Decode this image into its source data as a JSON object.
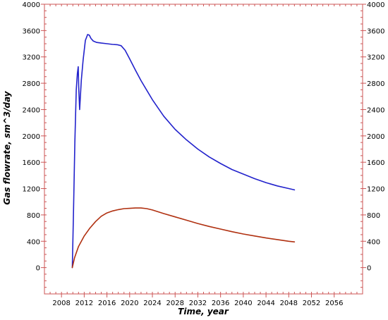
{
  "chart_data": {
    "type": "line",
    "xlabel": "Time, year",
    "ylabel": "Gas flowrate, sm^3/day",
    "xlim": [
      2005,
      2061
    ],
    "ylim": [
      -400,
      4000
    ],
    "x_ticks": [
      2008,
      2012,
      2016,
      2020,
      2024,
      2028,
      2032,
      2036,
      2040,
      2044,
      2048,
      2052,
      2056
    ],
    "y_ticks": [
      0,
      400,
      800,
      1200,
      1600,
      2000,
      2400,
      2800,
      3200,
      3600,
      4000
    ],
    "grid": false,
    "legend": "none",
    "series": [
      {
        "color": "#2222cc",
        "x": [
          2009.9,
          2010.1,
          2010.35,
          2010.6,
          2010.8,
          2010.95,
          2011.05,
          2011.2,
          2011.3,
          2011.5,
          2011.8,
          2012.2,
          2012.6,
          2012.9,
          2013.2,
          2013.6,
          2014.2,
          2015.0,
          2016.0,
          2017.0,
          2017.8,
          2018.5,
          2019.2,
          2020.0,
          2021.0,
          2022.0,
          2024.0,
          2026.0,
          2028.0,
          2030.0,
          2032.0,
          2034.0,
          2036.0,
          2038.0,
          2040.0,
          2042.0,
          2044.0,
          2046.0,
          2048.0,
          2049.0
        ],
        "y": [
          0,
          800,
          1900,
          2700,
          2950,
          3050,
          2700,
          2400,
          2550,
          2850,
          3150,
          3450,
          3540,
          3530,
          3480,
          3440,
          3420,
          3410,
          3400,
          3390,
          3385,
          3370,
          3300,
          3170,
          3000,
          2840,
          2550,
          2300,
          2100,
          1940,
          1800,
          1680,
          1580,
          1490,
          1420,
          1350,
          1290,
          1240,
          1200,
          1180
        ]
      },
      {
        "color": "#b03010",
        "x": [
          2009.9,
          2010.3,
          2011.0,
          2012.0,
          2013.0,
          2014.0,
          2015.0,
          2016.0,
          2017.0,
          2018.0,
          2019.0,
          2020.0,
          2021.0,
          2022.0,
          2023.0,
          2024.0,
          2026.0,
          2028.0,
          2030.0,
          2032.0,
          2034.0,
          2036.0,
          2038.0,
          2040.0,
          2042.0,
          2044.0,
          2046.0,
          2048.0,
          2049.0
        ],
        "y": [
          0,
          150,
          320,
          480,
          600,
          700,
          780,
          830,
          860,
          880,
          895,
          900,
          905,
          905,
          895,
          875,
          820,
          770,
          720,
          670,
          625,
          585,
          545,
          510,
          480,
          450,
          425,
          400,
          390
        ]
      }
    ]
  }
}
